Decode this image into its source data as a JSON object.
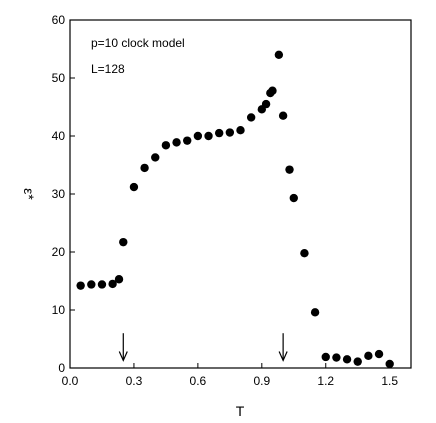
{
  "chart_data": {
    "type": "scatter",
    "xlabel": "T",
    "ylabel": "ε*",
    "xlim": [
      0.0,
      1.6
    ],
    "ylim": [
      0,
      60
    ],
    "x_ticks": [
      0.0,
      0.3,
      0.6,
      0.9,
      1.2,
      1.5
    ],
    "x_tick_labels": [
      "0.0",
      "0.3",
      "0.6",
      "0.9",
      "1.2",
      "1.5"
    ],
    "y_ticks": [
      0,
      10,
      20,
      30,
      40,
      50,
      60
    ],
    "y_tick_labels": [
      "0",
      "10",
      "20",
      "30",
      "40",
      "50",
      "60"
    ],
    "grid": false,
    "annotations": [
      "p=10 clock model",
      "L=128"
    ],
    "arrows": [
      {
        "x": 0.25,
        "y_from": 6.0,
        "y_to": 1.3
      },
      {
        "x": 1.0,
        "y_from": 6.0,
        "y_to": 1.3
      }
    ],
    "series": [
      {
        "x": [
          0.05,
          0.1,
          0.15,
          0.2,
          0.23,
          0.25,
          0.3,
          0.35,
          0.4,
          0.45,
          0.5,
          0.55,
          0.6,
          0.65,
          0.7,
          0.75,
          0.8,
          0.85,
          0.9,
          0.92,
          0.94,
          0.95,
          0.98,
          1.0,
          1.03,
          1.05,
          1.1,
          1.15,
          1.2,
          1.25,
          1.3,
          1.35,
          1.4,
          1.45,
          1.5
        ],
        "y": [
          14.2,
          14.4,
          14.4,
          14.5,
          15.3,
          21.7,
          31.2,
          34.5,
          36.3,
          38.4,
          38.9,
          39.2,
          40.0,
          40.0,
          40.5,
          40.6,
          41.0,
          43.2,
          44.6,
          45.5,
          47.4,
          47.8,
          54.0,
          43.5,
          34.2,
          29.3,
          19.8,
          9.6,
          1.9,
          1.8,
          1.5,
          1.1,
          2.1,
          2.4,
          0.7
        ]
      }
    ]
  }
}
